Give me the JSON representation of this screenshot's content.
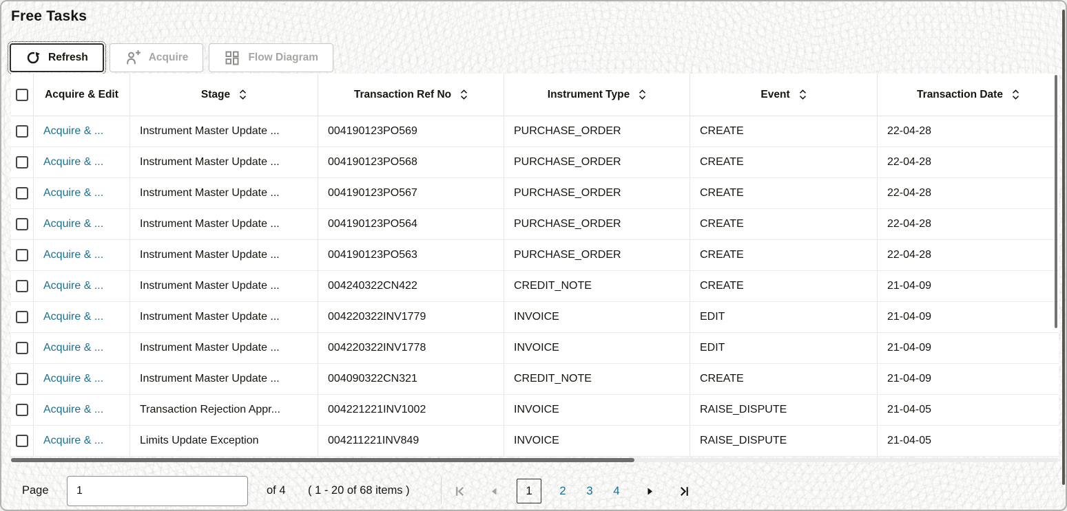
{
  "title": "Free Tasks",
  "toolbar": {
    "refresh_label": "Refresh",
    "acquire_label": "Acquire",
    "flow_diagram_label": "Flow Diagram"
  },
  "icons": {
    "refresh": "refresh-circular-arrow-icon",
    "acquire": "add-user-icon",
    "flow_diagram": "flow-diagram-boxes-icon",
    "sort": "sort-up-down-icon",
    "first_page": "first-page-icon",
    "prev_page": "previous-page-icon",
    "next_page": "next-page-icon",
    "last_page": "last-page-icon"
  },
  "table": {
    "columns": [
      "Acquire & Edit",
      "Stage",
      "Transaction Ref No",
      "Instrument Type",
      "Event",
      "Transaction Date"
    ],
    "action_label": "Acquire & ...",
    "rows": [
      {
        "stage": "Instrument Master Update ...",
        "ref": "004190123PO569",
        "type": "PURCHASE_ORDER",
        "event": "CREATE",
        "date": "22-04-28"
      },
      {
        "stage": "Instrument Master Update ...",
        "ref": "004190123PO568",
        "type": "PURCHASE_ORDER",
        "event": "CREATE",
        "date": "22-04-28"
      },
      {
        "stage": "Instrument Master Update ...",
        "ref": "004190123PO567",
        "type": "PURCHASE_ORDER",
        "event": "CREATE",
        "date": "22-04-28"
      },
      {
        "stage": "Instrument Master Update ...",
        "ref": "004190123PO564",
        "type": "PURCHASE_ORDER",
        "event": "CREATE",
        "date": "22-04-28"
      },
      {
        "stage": "Instrument Master Update ...",
        "ref": "004190123PO563",
        "type": "PURCHASE_ORDER",
        "event": "CREATE",
        "date": "22-04-28"
      },
      {
        "stage": "Instrument Master Update ...",
        "ref": "004240322CN422",
        "type": "CREDIT_NOTE",
        "event": "CREATE",
        "date": "21-04-09"
      },
      {
        "stage": "Instrument Master Update ...",
        "ref": "004220322INV1779",
        "type": "INVOICE",
        "event": "EDIT",
        "date": "21-04-09"
      },
      {
        "stage": "Instrument Master Update ...",
        "ref": "004220322INV1778",
        "type": "INVOICE",
        "event": "EDIT",
        "date": "21-04-09"
      },
      {
        "stage": "Instrument Master Update ...",
        "ref": "004090322CN321",
        "type": "CREDIT_NOTE",
        "event": "CREATE",
        "date": "21-04-09"
      },
      {
        "stage": "Transaction Rejection Appr...",
        "ref": "004221221INV1002",
        "type": "INVOICE",
        "event": "RAISE_DISPUTE",
        "date": "21-04-05"
      },
      {
        "stage": "Limits Update Exception",
        "ref": "004211221INV849",
        "type": "INVOICE",
        "event": "RAISE_DISPUTE",
        "date": "21-04-05"
      }
    ]
  },
  "pagination": {
    "page_label": "Page",
    "page_value": "1",
    "of_label": "of 4",
    "items_label": "( 1 - 20 of 68 items )",
    "pages": [
      "1",
      "2",
      "3",
      "4"
    ],
    "current_page": "1"
  },
  "colors": {
    "link": "#197192",
    "text": "#16150f",
    "disabled": "#a7a6a3",
    "scroll_thumb": "#6f6e6c"
  }
}
